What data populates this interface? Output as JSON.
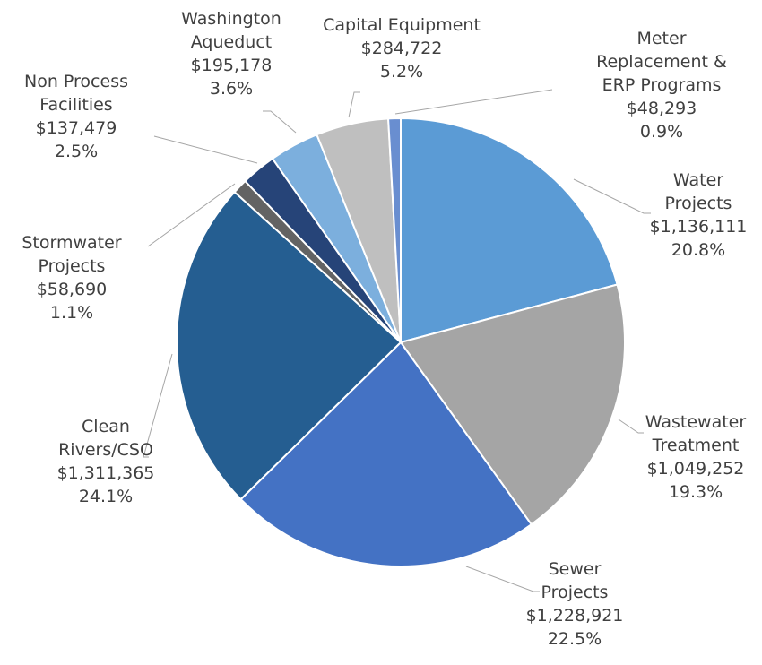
{
  "chart_data": {
    "type": "pie",
    "categories": [
      "Water Projects",
      "Wastewater Treatment",
      "Sewer Projects",
      "Clean Rivers/CSO",
      "Stormwater Projects",
      "Non Process Facilities",
      "Washington Aqueduct",
      "Capital Equipment",
      "Meter Replacement & ERP Programs"
    ],
    "values": [
      1136111,
      1049252,
      1228921,
      1311365,
      58690,
      137479,
      195178,
      284722,
      48293
    ],
    "value_labels": [
      "$1,136,111",
      "$1,049,252",
      "$1,228,921",
      "$1,311,365",
      "$58,690",
      "$137,479",
      "$195,178",
      "$284,722",
      "$48,293"
    ],
    "percent_labels": [
      "20.8%",
      "19.3%",
      "22.5%",
      "24.1%",
      "1.1%",
      "2.5%",
      "3.6%",
      "5.2%",
      "0.9%"
    ],
    "colors": [
      "#5b9bd5",
      "#a5a5a5",
      "#4472c4",
      "#255e91",
      "#636363",
      "#264478",
      "#7cafdd",
      "#bfbfbf",
      "#698ed0"
    ]
  }
}
